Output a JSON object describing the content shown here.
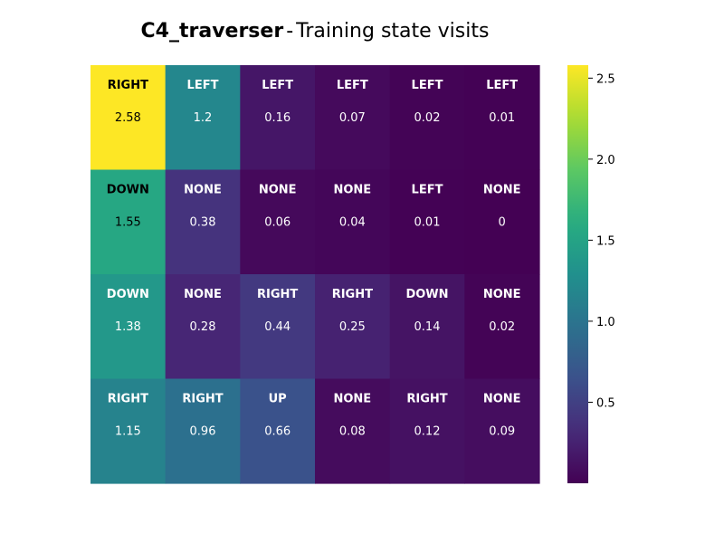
{
  "chart_data": {
    "type": "heatmap",
    "title_bold": "C4_traverser",
    "title_separator": "-",
    "title_rest": "Training state visits",
    "rows": [
      {
        "actions": [
          "RIGHT",
          "LEFT",
          "LEFT",
          "LEFT",
          "LEFT",
          "LEFT"
        ],
        "values": [
          2.58,
          1.2,
          0.16,
          0.07,
          0.02,
          0.01
        ]
      },
      {
        "actions": [
          "DOWN",
          "NONE",
          "NONE",
          "NONE",
          "LEFT",
          "NONE"
        ],
        "values": [
          1.55,
          0.38,
          0.06,
          0.04,
          0.01,
          0
        ]
      },
      {
        "actions": [
          "DOWN",
          "NONE",
          "RIGHT",
          "RIGHT",
          "DOWN",
          "NONE"
        ],
        "values": [
          1.38,
          0.28,
          0.44,
          0.25,
          0.14,
          0.02
        ]
      },
      {
        "actions": [
          "RIGHT",
          "RIGHT",
          "UP",
          "NONE",
          "RIGHT",
          "NONE"
        ],
        "values": [
          1.15,
          0.96,
          0.66,
          0.08,
          0.12,
          0.09
        ]
      }
    ],
    "colormap": "viridis",
    "vmin": 0,
    "vmax": 2.58,
    "colorbar_ticks": [
      0.5,
      1.0,
      1.5,
      2.0,
      2.5
    ],
    "colorbar_tick_labels": [
      "0.5",
      "1.0",
      "1.5",
      "2.0",
      "2.5"
    ]
  }
}
